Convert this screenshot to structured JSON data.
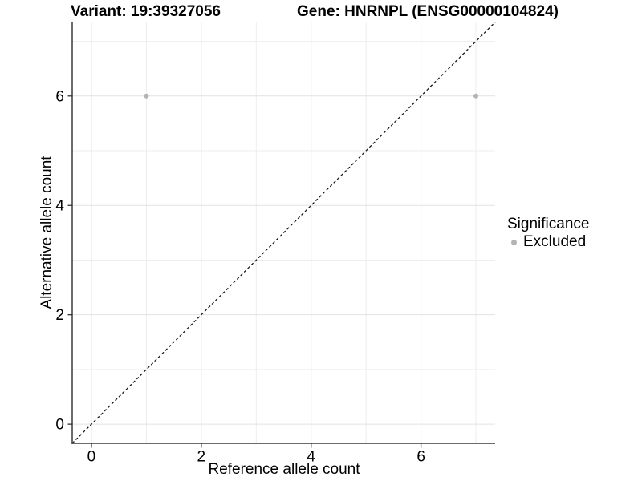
{
  "header": {
    "variant_title": "Variant: 19:39327056",
    "gene_title": "Gene: HNRNPL (ENSG00000104824)"
  },
  "legend": {
    "title": "Significance",
    "items": [
      {
        "label": "Excluded",
        "color": "#b4b4b4"
      }
    ]
  },
  "chart_data": {
    "type": "scatter",
    "title": "Variant: 19:39327056   Gene: HNRNPL (ENSG00000104824)",
    "xlabel": "Reference allele count",
    "ylabel": "Alternative allele count",
    "xlim": [
      -0.35,
      7.35
    ],
    "ylim": [
      -0.35,
      7.35
    ],
    "xticks": [
      0,
      2,
      4,
      6
    ],
    "yticks": [
      0,
      2,
      4,
      6
    ],
    "x_minor_ticks": [
      1,
      3,
      5,
      7
    ],
    "y_minor_ticks": [
      1,
      3,
      5,
      7
    ],
    "grid": true,
    "legend_position": "right",
    "series": [
      {
        "name": "Excluded",
        "color": "#b4b4b4",
        "point_radius": 3,
        "points": [
          {
            "x": 1,
            "y": 6
          },
          {
            "x": 7,
            "y": 6
          }
        ]
      }
    ],
    "identity_line": {
      "style": "dashed",
      "slope": 1,
      "intercept": 0,
      "color": "#1a1a1a"
    },
    "colors": {
      "background": "#ffffff",
      "axis_line": "#3a3a3a",
      "tick_mark": "#333333",
      "grid_major": "#e2e2e2",
      "grid_minor": "#ededed",
      "text": "#000000"
    }
  }
}
